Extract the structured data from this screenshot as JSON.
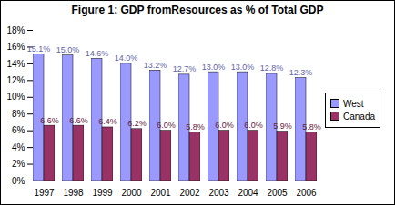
{
  "chart_data": {
    "type": "bar",
    "title": "Figure 1: GDP fromResources as % of Total GDP",
    "categories": [
      "1997",
      "1998",
      "1999",
      "2000",
      "2001",
      "2002",
      "2003",
      "2004",
      "2005",
      "2006"
    ],
    "series": [
      {
        "name": "West",
        "color": "#9999ff",
        "values": [
          15.1,
          15.0,
          14.6,
          14.0,
          13.2,
          12.7,
          13.0,
          13.0,
          12.8,
          12.3
        ],
        "value_labels": [
          "15.1%",
          "15.0%",
          "14.6%",
          "14.0%",
          "13.2%",
          "12.7%",
          "13.0%",
          "13.0%",
          "12.8%",
          "12.3%"
        ]
      },
      {
        "name": "Canada",
        "color": "#993366",
        "values": [
          6.6,
          6.6,
          6.4,
          6.2,
          6.0,
          5.8,
          6.0,
          6.0,
          5.9,
          5.8
        ],
        "value_labels": [
          "6.6%",
          "6.6%",
          "6.4%",
          "6.2%",
          "6.0%",
          "5.8%",
          "6.0%",
          "6.0%",
          "5.9%",
          "5.8%"
        ]
      }
    ],
    "ylim": [
      0,
      18
    ],
    "yticks": [
      {
        "value": 0,
        "label": "0%"
      },
      {
        "value": 2,
        "label": "2%"
      },
      {
        "value": 4,
        "label": "4%"
      },
      {
        "value": 6,
        "label": "6%"
      },
      {
        "value": 8,
        "label": "8%"
      },
      {
        "value": 10,
        "label": "10%"
      },
      {
        "value": 12,
        "label": "12%"
      },
      {
        "value": 14,
        "label": "14%"
      },
      {
        "value": 16,
        "label": "16%"
      },
      {
        "value": 18,
        "label": "18%"
      }
    ],
    "grid": false,
    "legend": "right",
    "data_labels": true
  }
}
